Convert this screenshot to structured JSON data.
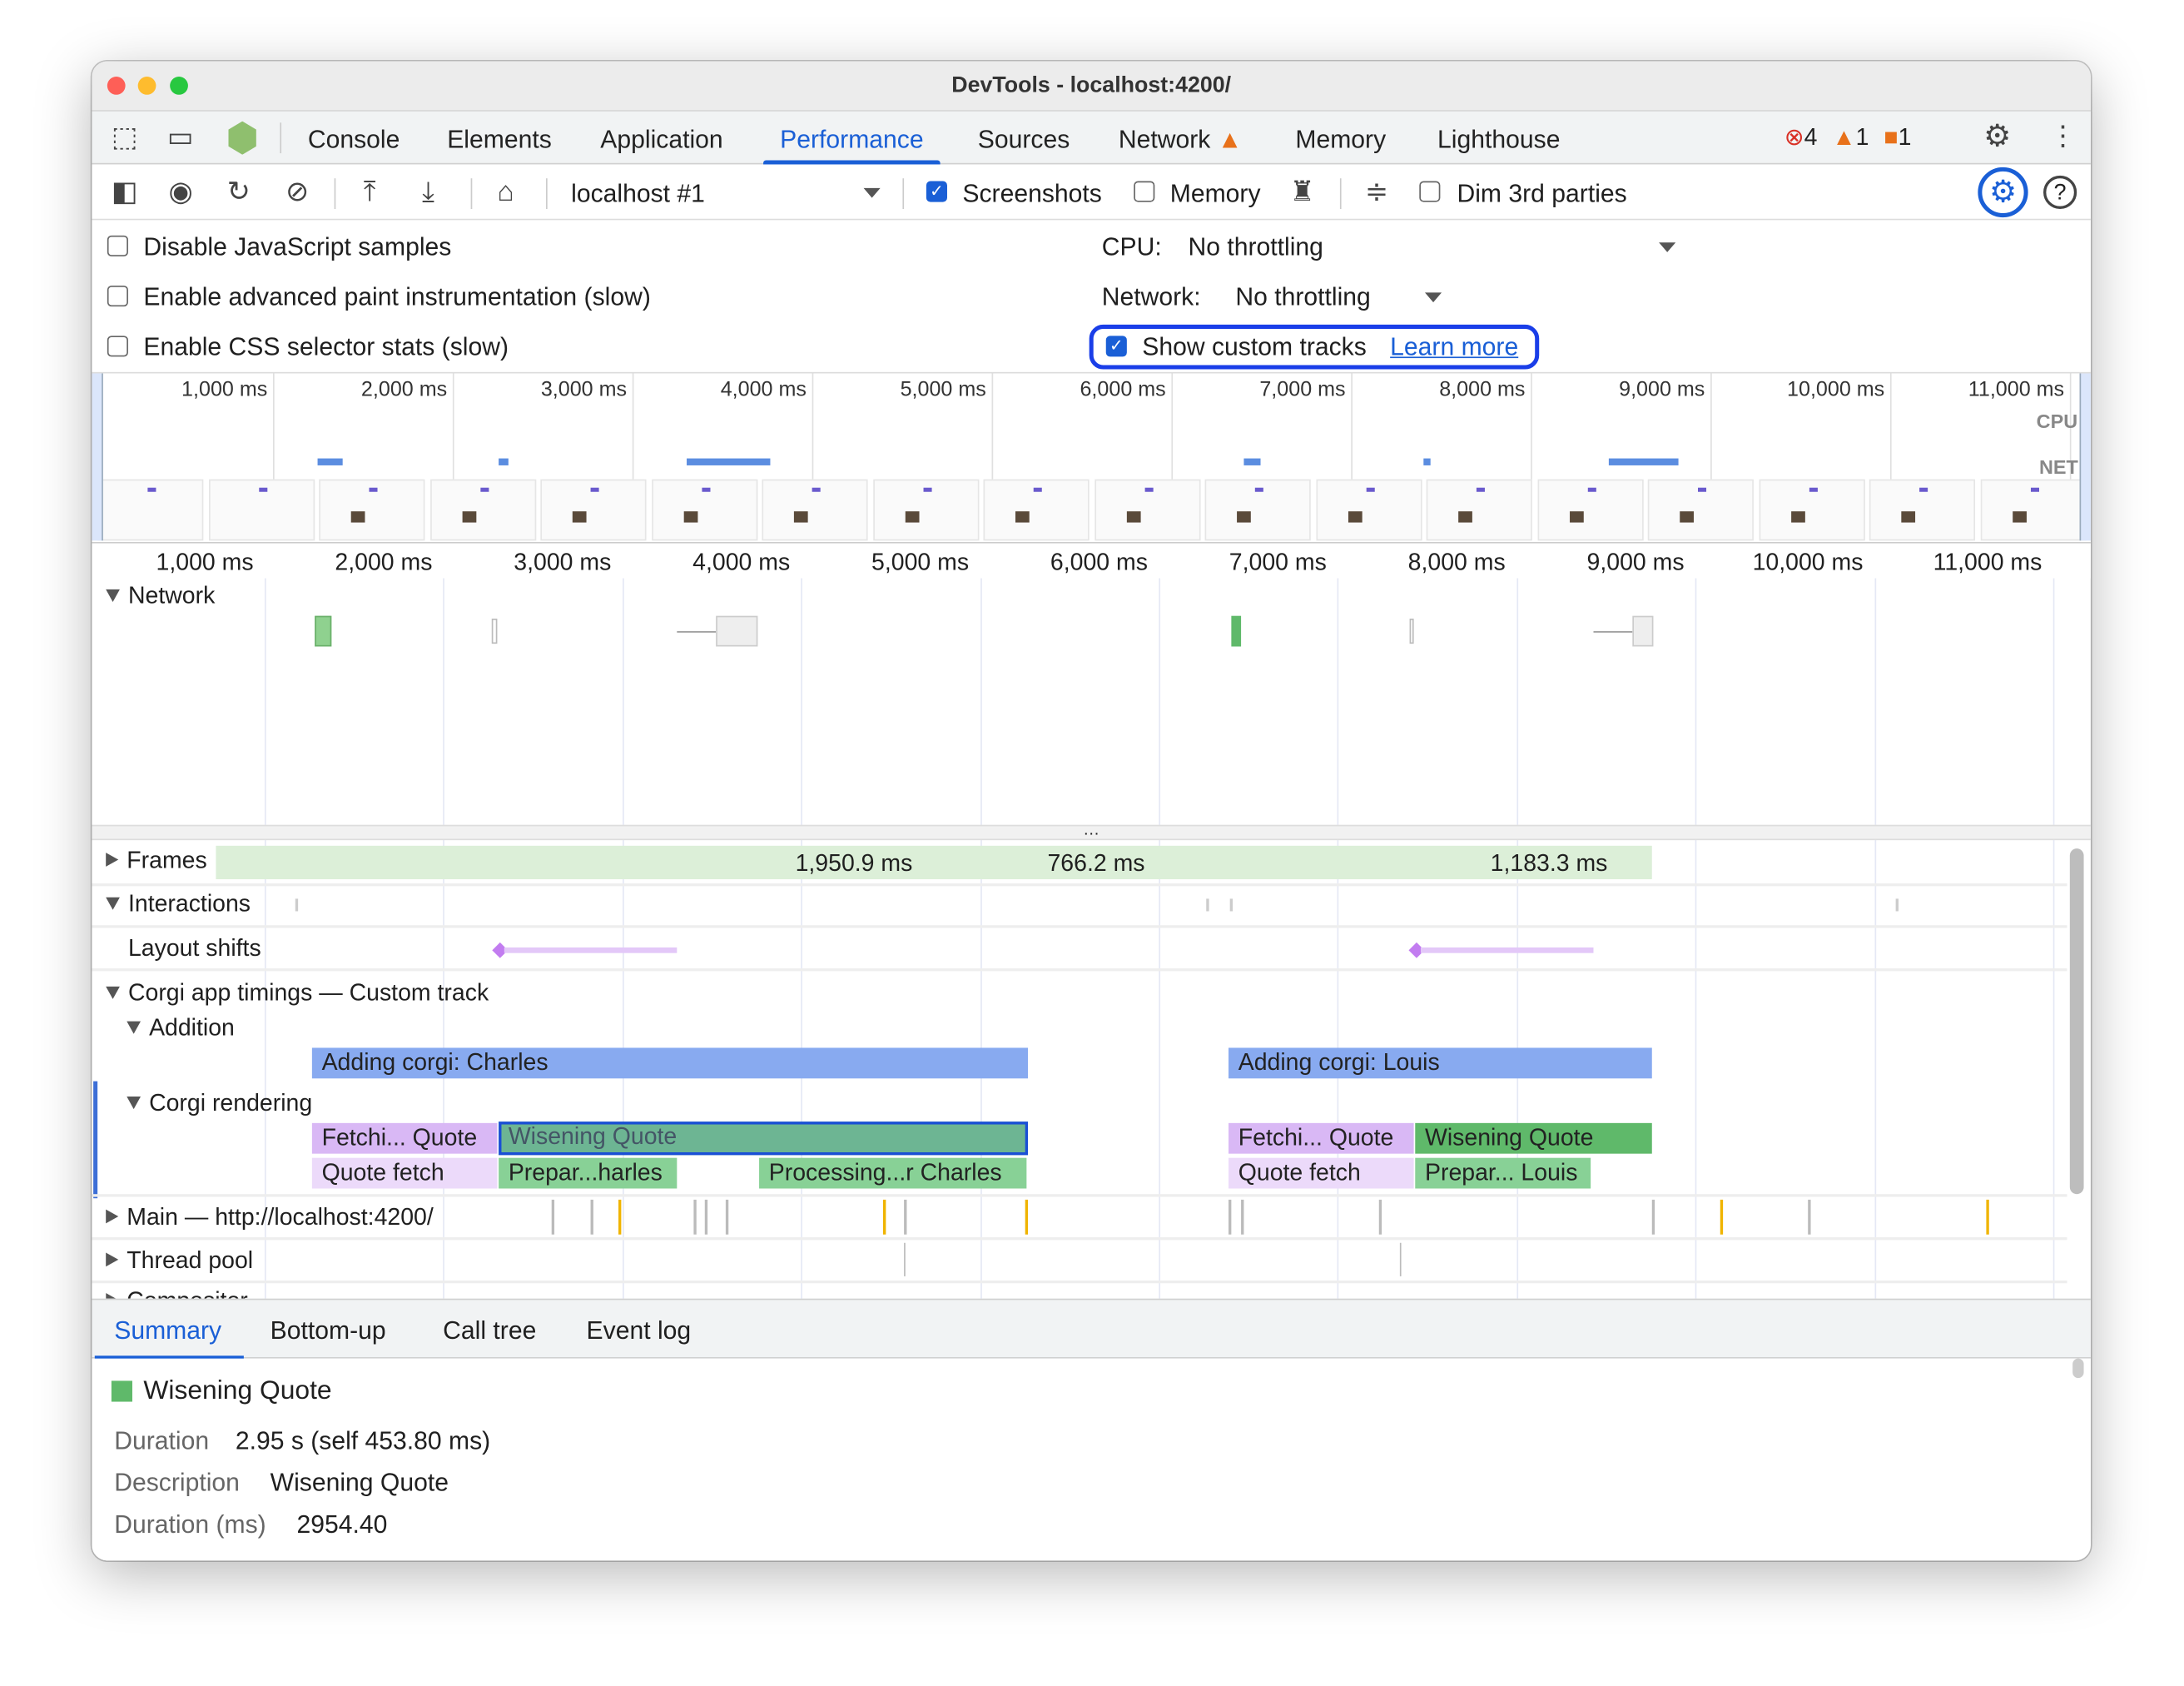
{
  "window": {
    "title": "DevTools - localhost:4200/"
  },
  "tabs": [
    {
      "label": "Console"
    },
    {
      "label": "Elements"
    },
    {
      "label": "Application"
    },
    {
      "label": "Performance",
      "active": true
    },
    {
      "label": "Sources"
    },
    {
      "label": "Network",
      "warning": true
    },
    {
      "label": "Memory"
    },
    {
      "label": "Lighthouse"
    }
  ],
  "badges": {
    "errors": "4",
    "warnings": "1",
    "issues": "1"
  },
  "toolbar": {
    "target": "localhost #1",
    "screenshots_label": "Screenshots",
    "screenshots_checked": true,
    "memory_label": "Memory",
    "memory_checked": false,
    "dim_label": "Dim 3rd parties",
    "dim_checked": false
  },
  "settings": {
    "disable_js": "Disable JavaScript samples",
    "adv_paint": "Enable advanced paint instrumentation (slow)",
    "css_stats": "Enable CSS selector stats (slow)",
    "cpu_label": "CPU:",
    "cpu_value": "No throttling",
    "network_label": "Network:",
    "network_value": "No throttling",
    "custom_tracks": "Show custom tracks",
    "custom_tracks_checked": true,
    "learn_more": "Learn more"
  },
  "overview": {
    "ticks": [
      "1,000 ms",
      "2,000 ms",
      "3,000 ms",
      "4,000 ms",
      "5,000 ms",
      "6,000 ms",
      "7,000 ms",
      "8,000 ms",
      "9,000 ms",
      "10,000 ms",
      "11,000 ms"
    ],
    "cpu_label": "CPU",
    "net_label": "NET"
  },
  "ruler": {
    "ticks": [
      "1,000 ms",
      "2,000 ms",
      "3,000 ms",
      "4,000 ms",
      "5,000 ms",
      "6,000 ms",
      "7,000 ms",
      "8,000 ms",
      "9,000 ms",
      "10,000 ms",
      "11,000 ms"
    ]
  },
  "tracks": {
    "network": "Network",
    "frames": "Frames",
    "frame_labels": [
      "1,950.9 ms",
      "766.2 ms",
      "1,183.3 ms"
    ],
    "interactions": "Interactions",
    "layout_shifts": "Layout shifts",
    "custom": "Corgi app timings — Custom track",
    "addition": "Addition",
    "addition_bars": [
      "Adding corgi: Charles",
      "Adding corgi: Louis"
    ],
    "rendering": "Corgi rendering",
    "rendering_row1": [
      "Fetchi... Quote",
      "Wisening Quote",
      "Fetchi... Quote",
      "Wisening Quote"
    ],
    "rendering_row2": [
      "Quote fetch",
      "Prepar...harles",
      "Processing...r Charles",
      "Quote fetch",
      "Prepar... Louis"
    ],
    "main": "Main — http://localhost:4200/",
    "thread_pool": "Thread pool",
    "more": "Compositor"
  },
  "bottom_tabs": [
    {
      "label": "Summary",
      "active": true
    },
    {
      "label": "Bottom-up"
    },
    {
      "label": "Call tree"
    },
    {
      "label": "Event log"
    }
  ],
  "summary": {
    "title": "Wisening Quote",
    "color": "#5fb96a",
    "duration_label": "Duration",
    "duration": "2.95 s (self 453.80 ms)",
    "description_label": "Description",
    "description": "Wisening Quote",
    "duration_ms_label": "Duration (ms)",
    "duration_ms": "2954.40"
  },
  "colors": {
    "accent": "#1a5fd6",
    "addition": "#88aaf0",
    "fetch": "#d9b8f5",
    "fetch_light": "#ecdafa",
    "green": "#88d196",
    "green_dark": "#5fb96a",
    "selected": "#6db593",
    "frames": "#dcefd8"
  }
}
